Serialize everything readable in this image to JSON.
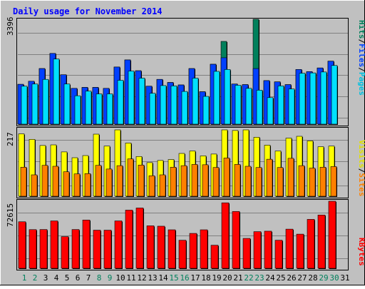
{
  "title": "Daily usage for November 2014",
  "colors": {
    "background": "#C0C0C0",
    "frame": "#000000",
    "title": "#0000FF",
    "grid": "#808080",
    "hits": "#00805C",
    "files": "#0040FF",
    "pages": "#00E0FF",
    "visits": "#FFFF00",
    "sites": "#FF8000",
    "kbytes": "#FF0000",
    "weekend_label": "#00805C",
    "weekday_label": "#000000"
  },
  "chart_data": [
    {
      "type": "bar",
      "name": "hits-files-pages",
      "y_max_label": "3396",
      "ylim": [
        0,
        3396
      ],
      "grid": true,
      "legend": "right",
      "legend_labels": [
        "Pages",
        "Files",
        "Hits"
      ],
      "categories": [
        "1",
        "2",
        "3",
        "4",
        "5",
        "6",
        "7",
        "8",
        "9",
        "10",
        "11",
        "12",
        "13",
        "14",
        "15",
        "16",
        "17",
        "18",
        "19",
        "20",
        "21",
        "22",
        "23",
        "24",
        "25",
        "26",
        "27",
        "28",
        "29",
        "30",
        "31"
      ],
      "weekend_days": [
        "1",
        "2",
        "8",
        "9",
        "15",
        "16",
        "22",
        "23",
        "29",
        "30"
      ],
      "series": [
        {
          "name": "Hits",
          "values": [
            1290,
            1390,
            1800,
            2290,
            1600,
            1160,
            1190,
            1190,
            1160,
            1850,
            2080,
            1730,
            1230,
            1450,
            1350,
            1270,
            1800,
            1050,
            1940,
            2680,
            1300,
            1280,
            3396,
            1410,
            1370,
            1280,
            1770,
            1700,
            1820,
            2040,
            0
          ]
        },
        {
          "name": "Files",
          "values": [
            1290,
            1390,
            1800,
            2290,
            1600,
            1160,
            1190,
            1190,
            1160,
            1850,
            2080,
            1730,
            1230,
            1450,
            1350,
            1270,
            1800,
            1050,
            1940,
            2150,
            1300,
            1280,
            1800,
            1410,
            1370,
            1280,
            1770,
            1700,
            1820,
            2040,
            0
          ]
        },
        {
          "name": "Pages",
          "values": [
            1230,
            1300,
            1450,
            2110,
            1300,
            920,
            1070,
            980,
            980,
            1420,
            1720,
            1490,
            1000,
            1250,
            1240,
            1060,
            1490,
            900,
            1710,
            1770,
            1260,
            1160,
            1100,
            860,
            1240,
            1140,
            1650,
            1660,
            1690,
            1900,
            0
          ]
        }
      ]
    },
    {
      "type": "bar",
      "name": "visits-sites",
      "y_max_label": "217",
      "ylim": [
        0,
        217
      ],
      "grid": true,
      "legend": "right",
      "legend_labels": [
        "Sites",
        "Visits"
      ],
      "categories": [
        "1",
        "2",
        "3",
        "4",
        "5",
        "6",
        "7",
        "8",
        "9",
        "10",
        "11",
        "12",
        "13",
        "14",
        "15",
        "16",
        "17",
        "18",
        "19",
        "20",
        "21",
        "22",
        "23",
        "24",
        "25",
        "26",
        "27",
        "28",
        "29",
        "30",
        "31"
      ],
      "series": [
        {
          "name": "Visits",
          "values": [
            204,
            186,
            166,
            168,
            145,
            126,
            133,
            203,
            164,
            217,
            174,
            130,
            110,
            117,
            120,
            140,
            148,
            132,
            138,
            217,
            215,
            217,
            193,
            167,
            148,
            190,
            196,
            181,
            162,
            164,
            0
          ]
        },
        {
          "name": "Sites",
          "values": [
            95,
            70,
            101,
            98,
            80,
            73,
            74,
            101,
            89,
            100,
            122,
            102,
            67,
            70,
            95,
            100,
            104,
            103,
            94,
            125,
            104,
            98,
            94,
            121,
            94,
            124,
            100,
            92,
            95,
            97,
            0
          ]
        }
      ]
    },
    {
      "type": "bar",
      "name": "kbytes",
      "y_max_label": "72615",
      "ylim": [
        0,
        72615
      ],
      "grid": true,
      "legend": "right",
      "legend_labels": [
        "KBytes"
      ],
      "categories": [
        "1",
        "2",
        "3",
        "4",
        "5",
        "6",
        "7",
        "8",
        "9",
        "10",
        "11",
        "12",
        "13",
        "14",
        "15",
        "16",
        "17",
        "18",
        "19",
        "20",
        "21",
        "22",
        "23",
        "24",
        "25",
        "26",
        "27",
        "28",
        "29",
        "30",
        "31"
      ],
      "series": [
        {
          "name": "KBytes",
          "values": [
            50400,
            41900,
            42000,
            51300,
            34300,
            42000,
            52300,
            41300,
            41300,
            51300,
            63000,
            65300,
            46000,
            45600,
            41700,
            30400,
            37800,
            41700,
            25000,
            70900,
            61500,
            32400,
            39700,
            40200,
            30400,
            42400,
            37000,
            53000,
            57700,
            72615,
            0
          ]
        }
      ]
    }
  ]
}
